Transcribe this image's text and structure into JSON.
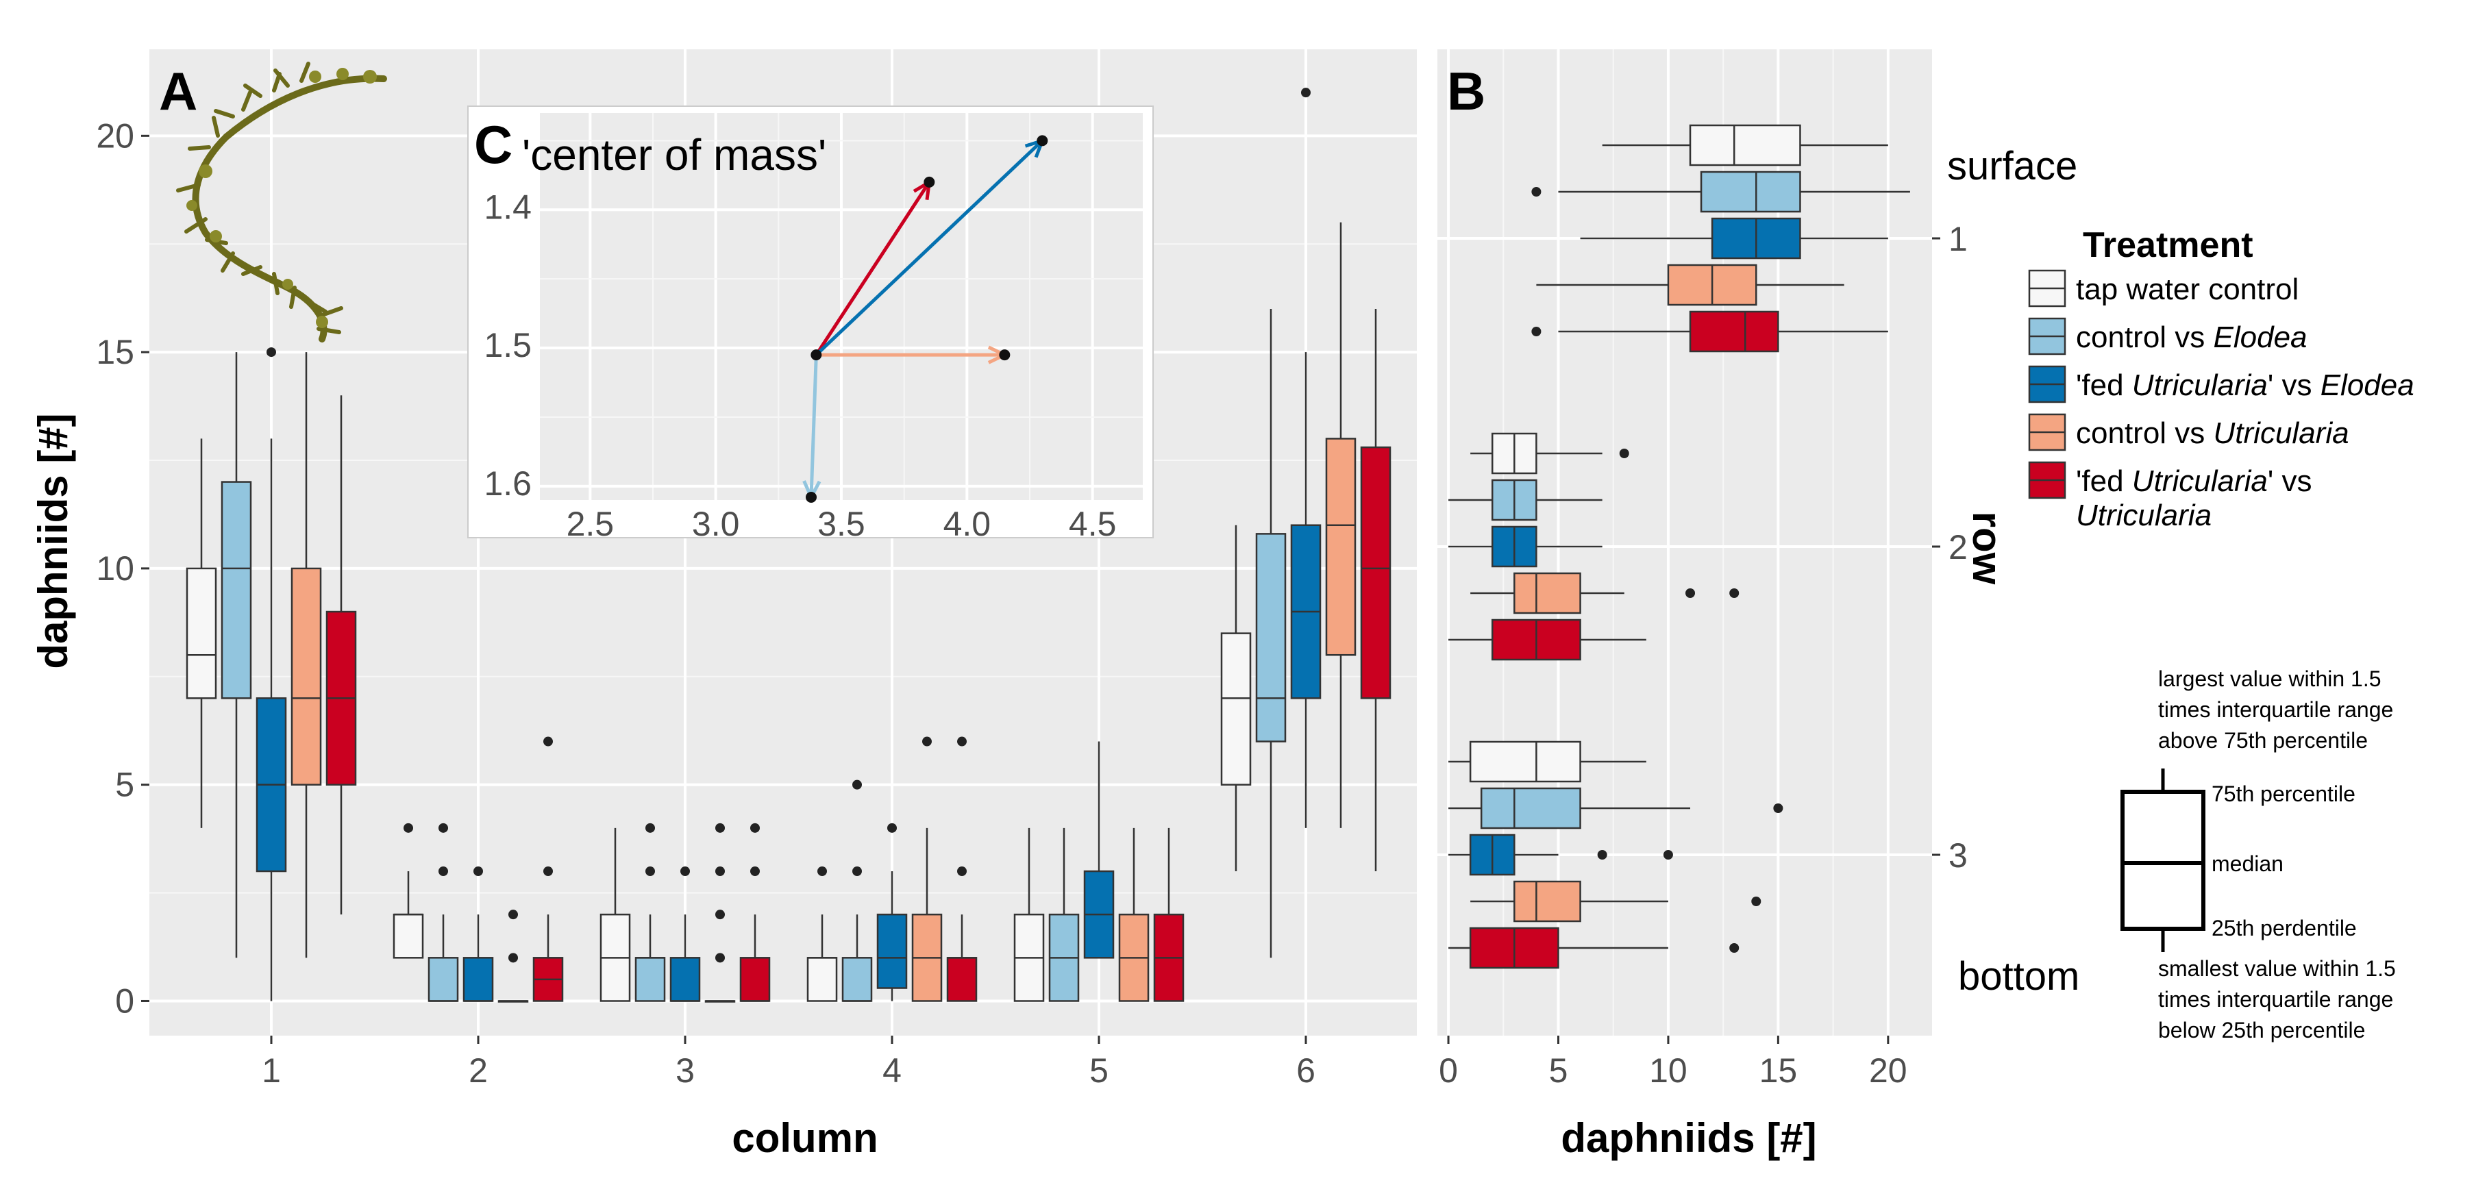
{
  "colors": {
    "tap water control": "#f7f7f7",
    "control vs Elodea": "#92c5de",
    "'fed Utricularia' vs Elodea": "#0571b0",
    "control vs Utricularia": "#f4a582",
    "'fed Utricularia' vs Utricularia": "#ca0020"
  },
  "panels": {
    "a_letter": "A",
    "b_letter": "B",
    "c_letter": "C"
  },
  "legend": {
    "title": "Treatment",
    "items": [
      {
        "key": "tap water control",
        "parts": [
          {
            "t": "tap water control",
            "i": false
          }
        ]
      },
      {
        "key": "control vs Elodea",
        "parts": [
          {
            "t": "control vs ",
            "i": false
          },
          {
            "t": "Elodea",
            "i": true
          }
        ]
      },
      {
        "key": "'fed Utricularia' vs Elodea",
        "parts": [
          {
            "t": "'fed ",
            "i": false
          },
          {
            "t": "Utricularia",
            "i": true
          },
          {
            "t": "' vs ",
            "i": false
          },
          {
            "t": "Elodea",
            "i": true
          }
        ]
      },
      {
        "key": "control vs Utricularia",
        "parts": [
          {
            "t": "control vs ",
            "i": false
          },
          {
            "t": "Utricularia",
            "i": true
          }
        ]
      },
      {
        "key": "'fed Utricularia' vs Utricularia",
        "parts": [
          {
            "t": "'fed ",
            "i": false
          },
          {
            "t": "Utricularia",
            "i": true
          },
          {
            "t": "' vs",
            "i": false
          }
        ],
        "parts2": [
          {
            "t": "Utricularia",
            "i": true
          }
        ]
      }
    ]
  },
  "boxplot_key": {
    "top": "largest value within 1.5",
    "top2": "times interquartile range",
    "top3": "above 75th percentile",
    "q3": "75th percentile",
    "median": "median",
    "q1": "25th perdentile",
    "bottom": "smallest value within 1.5",
    "bottom2": "times interquartile range",
    "bottom3": "below 25th percentile"
  },
  "row_labels": {
    "surface": "surface",
    "bottom": "bottom",
    "axis_title": "row"
  },
  "chart_data": [
    {
      "id": "A",
      "type": "boxplot",
      "xlabel": "column",
      "ylabel": "daphniids [#]",
      "categories": [
        "1",
        "2",
        "3",
        "4",
        "5",
        "6"
      ],
      "ylim": [
        -0.8,
        22
      ],
      "yticks": [
        0,
        5,
        10,
        15,
        20
      ],
      "groups": [
        {
          "category": "1",
          "boxes": [
            {
              "series": "tap water control",
              "min": 4,
              "q1": 7,
              "median": 8,
              "q3": 10,
              "max": 13,
              "outliers": []
            },
            {
              "series": "control vs Elodea",
              "min": 1,
              "q1": 7,
              "median": 10,
              "q3": 12,
              "max": 15,
              "outliers": []
            },
            {
              "series": "'fed Utricularia' vs Elodea",
              "min": 0,
              "q1": 3,
              "median": 5,
              "q3": 7,
              "max": 13,
              "outliers": [
                15
              ]
            },
            {
              "series": "control vs Utricularia",
              "min": 1,
              "q1": 5,
              "median": 7,
              "q3": 10,
              "max": 15,
              "outliers": []
            },
            {
              "series": "'fed Utricularia' vs Utricularia",
              "min": 2,
              "q1": 5,
              "median": 7,
              "q3": 9,
              "max": 14,
              "outliers": []
            }
          ]
        },
        {
          "category": "2",
          "boxes": [
            {
              "series": "tap water control",
              "min": 1,
              "q1": 1,
              "median": 2,
              "q3": 2,
              "max": 3,
              "outliers": [
                4
              ]
            },
            {
              "series": "control vs Elodea",
              "min": 0,
              "q1": 0,
              "median": 0,
              "q3": 1,
              "max": 2,
              "outliers": [
                3,
                4
              ]
            },
            {
              "series": "'fed Utricularia' vs Elodea",
              "min": 0,
              "q1": 0,
              "median": 0,
              "q3": 1,
              "max": 2,
              "outliers": [
                3
              ]
            },
            {
              "series": "control vs Utricularia",
              "min": 0,
              "q1": 0,
              "median": 0,
              "q3": 0,
              "max": 0,
              "outliers": [
                1,
                2
              ]
            },
            {
              "series": "'fed Utricularia' vs Utricularia",
              "min": 0,
              "q1": 0,
              "median": 0.5,
              "q3": 1,
              "max": 2,
              "outliers": [
                3,
                6
              ]
            }
          ]
        },
        {
          "category": "3",
          "boxes": [
            {
              "series": "tap water control",
              "min": 0,
              "q1": 0,
              "median": 1,
              "q3": 2,
              "max": 4,
              "outliers": []
            },
            {
              "series": "control vs Elodea",
              "min": 0,
              "q1": 0,
              "median": 1,
              "q3": 1,
              "max": 2,
              "outliers": [
                3,
                4
              ]
            },
            {
              "series": "'fed Utricularia' vs Elodea",
              "min": 0,
              "q1": 0,
              "median": 0,
              "q3": 1,
              "max": 2,
              "outliers": [
                3
              ]
            },
            {
              "series": "control vs Utricularia",
              "min": 0,
              "q1": 0,
              "median": 0,
              "q3": 0,
              "max": 0,
              "outliers": [
                1,
                2,
                3,
                4
              ]
            },
            {
              "series": "'fed Utricularia' vs Utricularia",
              "min": 0,
              "q1": 0,
              "median": 0,
              "q3": 1,
              "max": 2,
              "outliers": [
                3,
                4
              ]
            }
          ]
        },
        {
          "category": "4",
          "boxes": [
            {
              "series": "tap water control",
              "min": 0,
              "q1": 0,
              "median": 1,
              "q3": 1,
              "max": 2,
              "outliers": [
                3
              ]
            },
            {
              "series": "control vs Elodea",
              "min": 0,
              "q1": 0,
              "median": 0,
              "q3": 1,
              "max": 2,
              "outliers": [
                3,
                5
              ]
            },
            {
              "series": "'fed Utricularia' vs Elodea",
              "min": 0,
              "q1": 0.3,
              "median": 1,
              "q3": 2,
              "max": 3,
              "outliers": [
                4
              ]
            },
            {
              "series": "control vs Utricularia",
              "min": 0,
              "q1": 0,
              "median": 1,
              "q3": 2,
              "max": 4,
              "outliers": [
                6
              ]
            },
            {
              "series": "'fed Utricularia' vs Utricularia",
              "min": 0,
              "q1": 0,
              "median": 1,
              "q3": 1,
              "max": 2,
              "outliers": [
                3,
                6
              ]
            }
          ]
        },
        {
          "category": "5",
          "boxes": [
            {
              "series": "tap water control",
              "min": 0,
              "q1": 0,
              "median": 1,
              "q3": 2,
              "max": 4,
              "outliers": []
            },
            {
              "series": "control vs Elodea",
              "min": 0,
              "q1": 0,
              "median": 1,
              "q3": 2,
              "max": 4,
              "outliers": []
            },
            {
              "series": "'fed Utricularia' vs Elodea",
              "min": 1,
              "q1": 1,
              "median": 2,
              "q3": 3,
              "max": 6,
              "outliers": []
            },
            {
              "series": "control vs Utricularia",
              "min": 0,
              "q1": 0,
              "median": 1,
              "q3": 2,
              "max": 4,
              "outliers": []
            },
            {
              "series": "'fed Utricularia' vs Utricularia",
              "min": 0,
              "q1": 0,
              "median": 1,
              "q3": 2,
              "max": 4,
              "outliers": []
            }
          ]
        },
        {
          "category": "6",
          "boxes": [
            {
              "series": "tap water control",
              "min": 3,
              "q1": 5,
              "median": 7,
              "q3": 8.5,
              "max": 11,
              "outliers": []
            },
            {
              "series": "control vs Elodea",
              "min": 1,
              "q1": 6,
              "median": 7,
              "q3": 10.8,
              "max": 16,
              "outliers": []
            },
            {
              "series": "'fed Utricularia' vs Elodea",
              "min": 4,
              "q1": 7,
              "median": 9,
              "q3": 11,
              "max": 15,
              "outliers": [
                21
              ]
            },
            {
              "series": "control vs Utricularia",
              "min": 4,
              "q1": 8,
              "median": 11,
              "q3": 13,
              "max": 18,
              "outliers": []
            },
            {
              "series": "'fed Utricularia' vs Utricularia",
              "min": 3,
              "q1": 7,
              "median": 10,
              "q3": 12.8,
              "max": 16,
              "outliers": []
            }
          ]
        }
      ]
    },
    {
      "id": "B",
      "type": "boxplot-horizontal",
      "xlabel": "daphniids [#]",
      "ylabel": "row",
      "categories": [
        "1",
        "2",
        "3"
      ],
      "xlim": [
        -0.5,
        22
      ],
      "xticks": [
        0,
        5,
        10,
        15,
        20
      ],
      "groups": [
        {
          "category": "1",
          "boxes": [
            {
              "series": "tap water control",
              "min": 7,
              "q1": 11,
              "median": 13,
              "q3": 16,
              "max": 20,
              "outliers": []
            },
            {
              "series": "control vs Elodea",
              "min": 5,
              "q1": 11.5,
              "median": 14,
              "q3": 16,
              "max": 21,
              "outliers": [
                4
              ]
            },
            {
              "series": "'fed Utricularia' vs Elodea",
              "min": 6,
              "q1": 12,
              "median": 14,
              "q3": 16,
              "max": 20,
              "outliers": []
            },
            {
              "series": "control vs Utricularia",
              "min": 4,
              "q1": 10,
              "median": 12,
              "q3": 14,
              "max": 18,
              "outliers": []
            },
            {
              "series": "'fed Utricularia' vs Utricularia",
              "min": 5,
              "q1": 11,
              "median": 13.5,
              "q3": 15,
              "max": 20,
              "outliers": [
                4
              ]
            }
          ]
        },
        {
          "category": "2",
          "boxes": [
            {
              "series": "tap water control",
              "min": 1,
              "q1": 2,
              "median": 3,
              "q3": 4,
              "max": 7,
              "outliers": [
                8
              ]
            },
            {
              "series": "control vs Elodea",
              "min": 0,
              "q1": 2,
              "median": 3,
              "q3": 4,
              "max": 7,
              "outliers": []
            },
            {
              "series": "'fed Utricularia' vs Elodea",
              "min": 0,
              "q1": 2,
              "median": 3,
              "q3": 4,
              "max": 7,
              "outliers": []
            },
            {
              "series": "control vs Utricularia",
              "min": 1,
              "q1": 3,
              "median": 4,
              "q3": 6,
              "max": 8,
              "outliers": [
                11,
                13
              ]
            },
            {
              "series": "'fed Utricularia' vs Utricularia",
              "min": 0,
              "q1": 2,
              "median": 4,
              "q3": 6,
              "max": 9,
              "outliers": []
            }
          ]
        },
        {
          "category": "3",
          "boxes": [
            {
              "series": "tap water control",
              "min": 0,
              "q1": 1,
              "median": 4,
              "q3": 6,
              "max": 9,
              "outliers": []
            },
            {
              "series": "control vs Elodea",
              "min": 0,
              "q1": 1.5,
              "median": 3,
              "q3": 6,
              "max": 11,
              "outliers": [
                15
              ]
            },
            {
              "series": "'fed Utricularia' vs Elodea",
              "min": 0,
              "q1": 1,
              "median": 2,
              "q3": 3,
              "max": 5,
              "outliers": [
                7,
                10
              ]
            },
            {
              "series": "control vs Utricularia",
              "min": 1,
              "q1": 3,
              "median": 4,
              "q3": 6,
              "max": 10,
              "outliers": [
                14
              ]
            },
            {
              "series": "'fed Utricularia' vs Utricularia",
              "min": 0,
              "q1": 1,
              "median": 3,
              "q3": 5,
              "max": 10,
              "outliers": [
                13
              ]
            }
          ]
        }
      ]
    },
    {
      "id": "C",
      "type": "vector",
      "title": "'center of mass'",
      "xlim": [
        2.3,
        4.7
      ],
      "ylim": [
        1.61,
        1.33
      ],
      "xticks": [
        2.5,
        3.0,
        3.5,
        4.0,
        4.5
      ],
      "yticks": [
        1.4,
        1.5,
        1.6
      ],
      "origin": {
        "x": 3.4,
        "y": 1.505
      },
      "vectors": [
        {
          "series": "'fed Utricularia' vs Utricularia",
          "x": 3.85,
          "y": 1.38
        },
        {
          "series": "'fed Utricularia' vs Elodea",
          "x": 4.3,
          "y": 1.35
        },
        {
          "series": "control vs Utricularia",
          "x": 4.15,
          "y": 1.505
        },
        {
          "series": "control vs Elodea",
          "x": 3.38,
          "y": 1.608
        }
      ]
    }
  ]
}
